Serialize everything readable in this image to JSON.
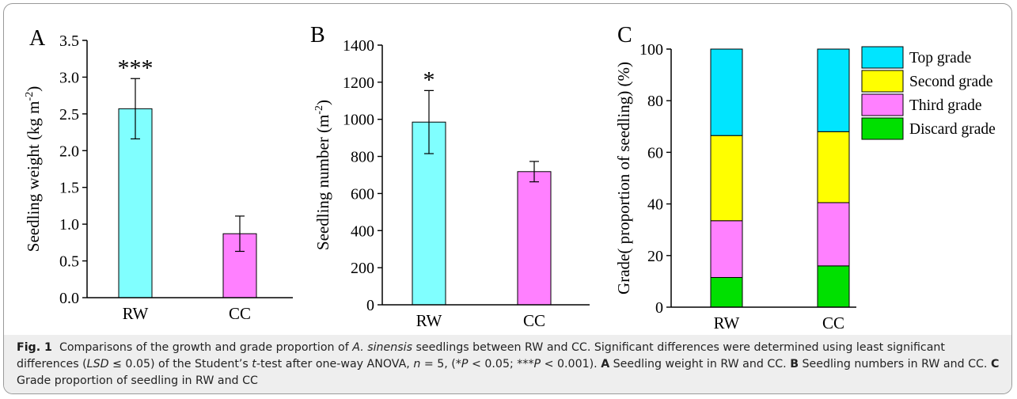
{
  "caption": {
    "label": "Fig. 1",
    "segments": [
      {
        "t": "Comparisons of the growth and grade proportion of ",
        "s": "n"
      },
      {
        "t": "A. sinensis",
        "s": "i"
      },
      {
        "t": " seedlings between RW and CC. Significant differences were determined using least significant differences (",
        "s": "n"
      },
      {
        "t": "LSD",
        "s": "i"
      },
      {
        "t": " ≤ 0.05) of the Student’s ",
        "s": "n"
      },
      {
        "t": "t",
        "s": "i"
      },
      {
        "t": "-test after one-way ANOVA, ",
        "s": "n"
      },
      {
        "t": "n",
        "s": "i"
      },
      {
        "t": " = 5, (*",
        "s": "n"
      },
      {
        "t": "P",
        "s": "i"
      },
      {
        "t": " < 0.05; ***",
        "s": "n"
      },
      {
        "t": "P",
        "s": "i"
      },
      {
        "t": " < 0.001). ",
        "s": "n"
      },
      {
        "t": "A",
        "s": "b"
      },
      {
        "t": " Seedling weight in RW and CC. ",
        "s": "n"
      },
      {
        "t": "B",
        "s": "b"
      },
      {
        "t": " Seedling numbers in RW and CC. ",
        "s": "n"
      },
      {
        "t": "C",
        "s": "b"
      },
      {
        "t": " Grade proportion of seedling in RW and CC",
        "s": "n"
      }
    ]
  },
  "colors": {
    "rw": "#80ffff",
    "cc": "#ff80ff",
    "top": "#00e5ff",
    "second": "#ffff00",
    "third": "#ff80ff",
    "discard": "#00e000",
    "caption_bg": "#eeeeee"
  },
  "chart_data": [
    {
      "panel": "A",
      "type": "bar",
      "categories": [
        "RW",
        "CC"
      ],
      "values": [
        2.57,
        0.87
      ],
      "errors": [
        0.41,
        0.24
      ],
      "significance": [
        "***",
        ""
      ],
      "ylabel": "Seedling weight (kg m-2)",
      "ylim": [
        0,
        3.5
      ],
      "yticks": [
        "0.0",
        "0.5",
        "1.0",
        "1.5",
        "2.0",
        "2.5",
        "3.0",
        "3.5"
      ]
    },
    {
      "panel": "B",
      "type": "bar",
      "categories": [
        "RW",
        "CC"
      ],
      "values": [
        985,
        718
      ],
      "errors": [
        170,
        55
      ],
      "significance": [
        "*",
        ""
      ],
      "ylabel": "Seedling number (m-2)",
      "ylim": [
        0,
        1400
      ],
      "yticks": [
        "0",
        "200",
        "400",
        "600",
        "800",
        "1000",
        "1200",
        "1400"
      ]
    },
    {
      "panel": "C",
      "type": "bar",
      "stacked": true,
      "categories": [
        "RW",
        "CC"
      ],
      "series": [
        {
          "name": "Discard grade",
          "values": [
            11.5,
            16
          ]
        },
        {
          "name": "Third grade",
          "values": [
            22,
            24.5
          ]
        },
        {
          "name": "Second grade",
          "values": [
            33,
            27.5
          ]
        },
        {
          "name": "Top grade",
          "values": [
            33.5,
            32
          ]
        }
      ],
      "ylabel": "Grade( proportion of seedling) (%)",
      "ylim": [
        0,
        100
      ],
      "yticks": [
        "0",
        "20",
        "40",
        "60",
        "80",
        "100"
      ],
      "legend": [
        "Top grade",
        "Second grade",
        "Third grade",
        "Discard grade"
      ],
      "legend_position": "top-right"
    }
  ]
}
